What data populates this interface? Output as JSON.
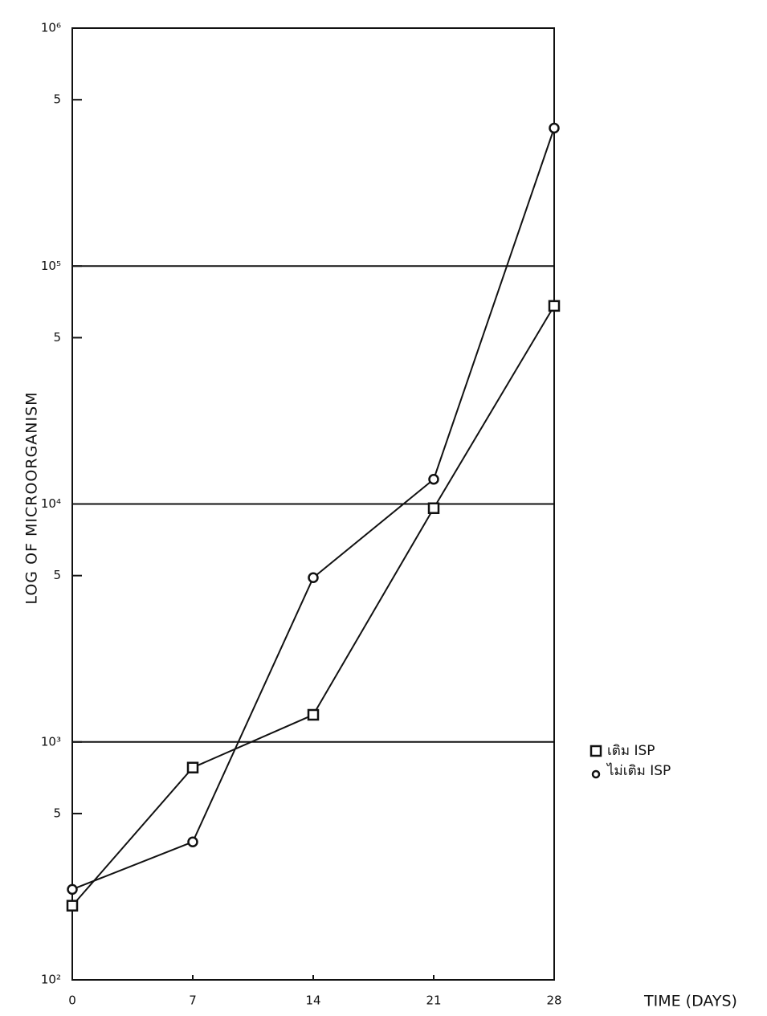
{
  "chart_data": {
    "type": "line",
    "y_label": "LOG OF MICROORGANISM",
    "x_label": "TIME (DAYS)",
    "x": [
      0,
      7,
      14,
      21,
      28
    ],
    "xlim": [
      0,
      28
    ],
    "xticks": [
      0,
      7,
      14,
      21,
      28
    ],
    "ylim": [
      100,
      1000000
    ],
    "log_y": true,
    "grid": true,
    "yticks": [
      {
        "value": 100,
        "label": "10²"
      },
      {
        "value": 500,
        "label": "5"
      },
      {
        "value": 1000,
        "label": "10³"
      },
      {
        "value": 5000,
        "label": "5"
      },
      {
        "value": 10000,
        "label": "10⁴"
      },
      {
        "value": 50000,
        "label": "5"
      },
      {
        "value": 100000,
        "label": "10⁵"
      },
      {
        "value": 500000,
        "label": "5"
      },
      {
        "value": 1000000,
        "label": "10⁶"
      }
    ],
    "legend": "right",
    "series": [
      {
        "name": "เติม ISP",
        "color": "#111111",
        "marker": "square",
        "values": [
          205,
          780,
          1300,
          9600,
          68000
        ]
      },
      {
        "name": "ไม่เติม ISP",
        "color": "#111111",
        "marker": "circle",
        "values": [
          240,
          380,
          4900,
          12700,
          380000
        ]
      }
    ]
  }
}
